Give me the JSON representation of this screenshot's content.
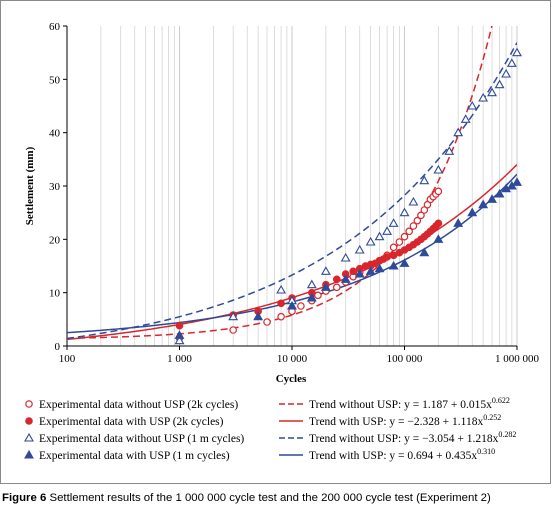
{
  "chart_data": {
    "type": "scatter",
    "title": "",
    "xlabel": "Cycles",
    "ylabel": "Settlement (mm)",
    "xscale": "log",
    "xlim": [
      100,
      1000000
    ],
    "ylim": [
      0,
      60
    ],
    "x_ticks": [
      100,
      1000,
      10000,
      100000,
      1000000
    ],
    "x_tick_labels": [
      "100",
      "1 000",
      "10 000",
      "100 000",
      "1 000 000"
    ],
    "y_ticks": [
      0,
      10,
      20,
      30,
      40,
      50,
      60
    ],
    "y_tick_labels": [
      "0",
      "10",
      "20",
      "30",
      "40",
      "50",
      "60"
    ],
    "grid": "vertical minor log gridlines",
    "legend_position": "bottom",
    "series": [
      {
        "name": "Experimental data without USP (2k cycles)",
        "marker": "open-circle",
        "color": "#d9262c",
        "x": [
          1000,
          3000,
          6000,
          8000,
          10000,
          12000,
          15000,
          17000,
          20000,
          25000,
          30000,
          35000,
          40000,
          50000,
          60000,
          70000,
          80000,
          90000,
          100000,
          110000,
          120000,
          130000,
          140000,
          150000,
          160000,
          170000,
          180000,
          190000,
          200000
        ],
        "y": [
          1.5,
          3.0,
          4.5,
          5.5,
          6.5,
          7.5,
          8.5,
          9.5,
          10.3,
          11.0,
          12.0,
          13.0,
          13.8,
          15.0,
          16.0,
          17.0,
          18.5,
          19.5,
          20.5,
          21.5,
          22.5,
          23.5,
          24.5,
          25.5,
          26.5,
          27.5,
          28.0,
          28.5,
          29.0
        ]
      },
      {
        "name": "Experimental data with USP (2k cycles)",
        "marker": "filled-circle",
        "color": "#d9262c",
        "x": [
          1000,
          3000,
          5000,
          8000,
          10000,
          15000,
          20000,
          25000,
          30000,
          35000,
          40000,
          45000,
          50000,
          55000,
          60000,
          65000,
          70000,
          80000,
          90000,
          100000,
          110000,
          120000,
          130000,
          140000,
          150000,
          160000,
          170000,
          180000,
          190000,
          200000
        ],
        "y": [
          3.8,
          5.8,
          6.5,
          8.0,
          9.0,
          10.0,
          11.5,
          12.5,
          13.5,
          14.0,
          14.5,
          15.0,
          15.3,
          15.5,
          16.0,
          16.3,
          16.7,
          17.0,
          17.5,
          18.0,
          18.5,
          19.0,
          19.5,
          20.0,
          20.5,
          21.0,
          21.5,
          22.0,
          22.5,
          23.0
        ]
      },
      {
        "name": "Experimental data without USP (1 m cycles)",
        "marker": "open-triangle",
        "color": "#2e4a9b",
        "x": [
          1000,
          3000,
          8000,
          10000,
          15000,
          20000,
          30000,
          40000,
          50000,
          60000,
          70000,
          80000,
          100000,
          120000,
          150000,
          200000,
          250000,
          300000,
          350000,
          400000,
          500000,
          600000,
          700000,
          800000,
          900000,
          1000000
        ],
        "y": [
          1.0,
          5.5,
          10.5,
          8.5,
          11.5,
          14.0,
          16.5,
          18.0,
          19.5,
          20.5,
          21.5,
          23.0,
          25.0,
          27.0,
          31.0,
          33.0,
          36.5,
          40.0,
          42.5,
          45.0,
          46.5,
          47.5,
          49.0,
          51.0,
          53.0,
          55.0
        ]
      },
      {
        "name": "Experimental data with USP (1 m cycles)",
        "marker": "filled-triangle",
        "color": "#2e4a9b",
        "x": [
          1000,
          5000,
          10000,
          15000,
          20000,
          30000,
          40000,
          50000,
          60000,
          80000,
          100000,
          150000,
          200000,
          300000,
          400000,
          500000,
          600000,
          700000,
          800000,
          900000,
          1000000
        ],
        "y": [
          2.0,
          5.5,
          7.5,
          9.0,
          11.0,
          12.5,
          13.5,
          14.0,
          14.5,
          15.0,
          15.5,
          17.5,
          20.0,
          23.0,
          25.0,
          26.5,
          27.5,
          28.5,
          29.5,
          30.0,
          30.7
        ]
      }
    ],
    "trends": [
      {
        "name": "Trend without USP: y = 1.187 + 0.015x^0.622",
        "label_lead": "Trend without USP: ",
        "label_eq": "y = 1.187 + 0.015x",
        "label_exp": "0.622",
        "style": "dashed",
        "color": "#d9262c",
        "a": 1.187,
        "b": 0.015,
        "p": 0.622
      },
      {
        "name": "Trend with USP: y = −2.328 + 1.118x^0.252",
        "label_lead": "Trend with USP: ",
        "label_eq": "y = −2.328 + 1.118x",
        "label_exp": "0.252",
        "style": "solid",
        "color": "#d9262c",
        "a": -2.328,
        "b": 1.118,
        "p": 0.252
      },
      {
        "name": "Trend without USP: y = −3.054 + 1.218x^0.282",
        "label_lead": "Trend without USP: ",
        "label_eq": "y = −3.054 + 1.218x",
        "label_exp": "0.282",
        "style": "dashed",
        "color": "#2e4a9b",
        "a": -3.054,
        "b": 1.218,
        "p": 0.282
      },
      {
        "name": "Trend with USP: y = 0.694 + 0.435x^0.310",
        "label_lead": "Trend with USP: ",
        "label_eq": "y = 0.694 + 0.435x",
        "label_exp": "0.310",
        "style": "solid",
        "color": "#2e4a9b",
        "a": 0.694,
        "b": 0.435,
        "p": 0.31
      }
    ]
  },
  "caption": {
    "label": "Figure 6",
    "text": " Settlement results of the 1 000 000 cycle test and the 200 000 cycle test (Experiment 2)"
  }
}
